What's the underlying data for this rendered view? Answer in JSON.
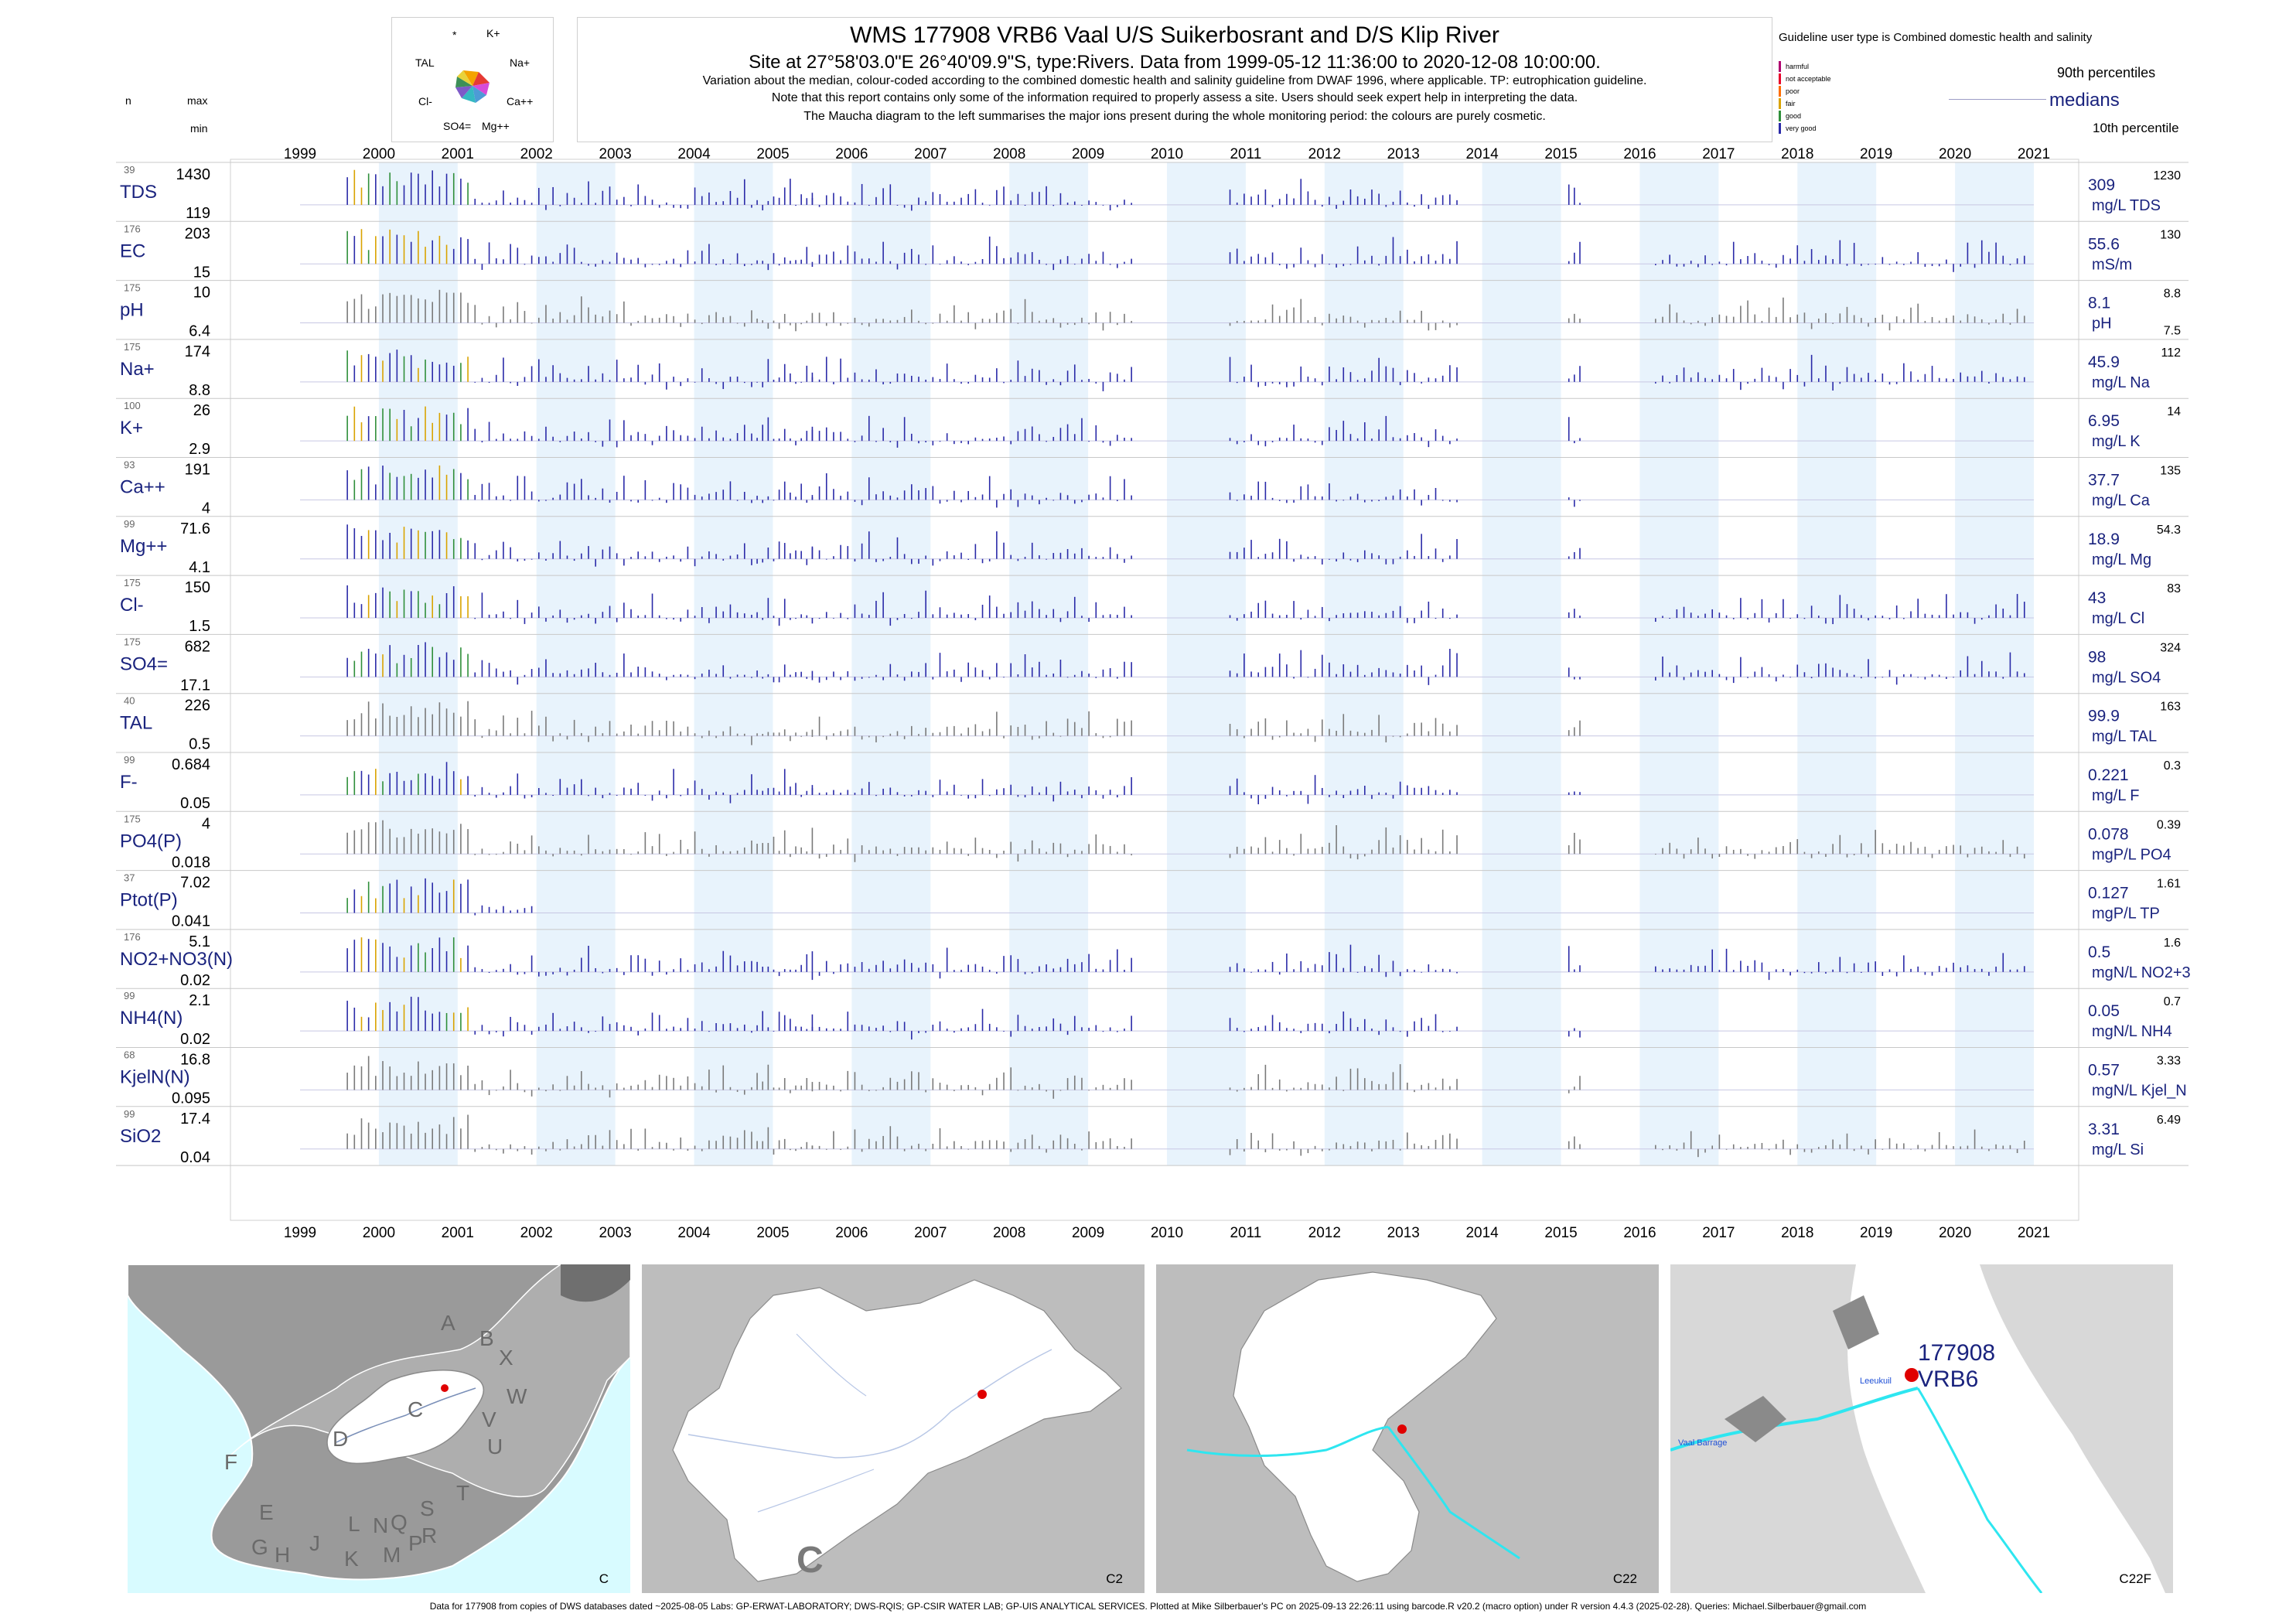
{
  "header": {
    "title": "WMS 177908 VRB6 Vaal U/S Suikerbosrant and D/S Klip River",
    "site_line": "Site at 27°58'03.0\"E 26°40'09.9\"S, type:Rivers.  Data from 1999-05-12 11:36:00 to 2020-12-08 10:00:00.",
    "note_1": "Variation about the median,  colour-coded according to the combined domestic health and salinity guideline from DWAF 1996, where applicable. TP: eutrophication guideline.",
    "note_2": "Note that this report contains only some of the information required to properly assess a site. Users should seek expert help in interpreting the data.",
    "note_3": "The Maucha diagram to the left summarises the major ions present during the whole monitoring period: the colours are purely cosmetic."
  },
  "maucha": {
    "labels": [
      "*",
      "K+",
      "TAL",
      "Na+",
      "Cl-",
      "Ca++",
      "SO4=",
      "Mg++"
    ]
  },
  "guideline": {
    "title": "Guideline user type is Combined domestic health and salinity",
    "categories": [
      {
        "label": "harmful",
        "color": "#b0006f"
      },
      {
        "label": "not acceptable",
        "color": "#e8002a"
      },
      {
        "label": "poor",
        "color": "#ff6d00"
      },
      {
        "label": "fair",
        "color": "#d9a300"
      },
      {
        "label": "good",
        "color": "#2f8f3a"
      },
      {
        "label": "very good",
        "color": "#2a2aa8"
      }
    ],
    "p90_label": "90th percentiles",
    "median_label": "medians",
    "p10_label": "10th percentile"
  },
  "column_heads": {
    "n": "n",
    "max": "max",
    "min": "min"
  },
  "chart_data": {
    "type": "bar",
    "title": "WMS 177908 VRB6 Vaal U/S Suikerbosrant and D/S Klip River",
    "x_range": [
      1999,
      2021
    ],
    "x_ticks": [
      "1999",
      "2000",
      "2001",
      "2002",
      "2003",
      "2004",
      "2005",
      "2006",
      "2007",
      "2008",
      "2009",
      "2010",
      "2011",
      "2012",
      "2013",
      "2014",
      "2015",
      "2016",
      "2017",
      "2018",
      "2019",
      "2020",
      "2021"
    ],
    "sampling": {
      "dense_periods": [
        [
          1999.6,
          2004.8
        ],
        [
          2005.5,
          2009.6
        ],
        [
          2010.8,
          2013.7
        ],
        [
          2016.2,
          2020.95
        ]
      ],
      "sparse_periods": [
        [
          2004.8,
          2005.5
        ],
        [
          2015.1,
          2015.3
        ]
      ]
    },
    "panels": [
      {
        "name": "TDS",
        "n": 39,
        "max": "1430",
        "min": "119",
        "median": "309",
        "unit": "mg/L TDS",
        "p90": "1230",
        "colored": true,
        "end_year": 2015.3
      },
      {
        "name": "EC",
        "n": 176,
        "max": "203",
        "min": "15",
        "median": "55.6",
        "unit": "mS/m",
        "p90": "130",
        "colored": true,
        "end_year": 2020.95
      },
      {
        "name": "pH",
        "n": 175,
        "max": "10",
        "min": "6.4",
        "median": "8.1",
        "unit": "pH",
        "p90": "8.8",
        "p10": "7.5",
        "colored": false,
        "end_year": 2020.95
      },
      {
        "name": "Na+",
        "n": 175,
        "max": "174",
        "min": "8.8",
        "median": "45.9",
        "unit": "mg/L Na",
        "p90": "112",
        "colored": true,
        "end_year": 2020.95
      },
      {
        "name": "K+",
        "n": 100,
        "max": "26",
        "min": "2.9",
        "median": "6.95",
        "unit": "mg/L K",
        "p90": "14",
        "colored": true,
        "end_year": 2015.3
      },
      {
        "name": "Ca++",
        "n": 93,
        "max": "191",
        "min": "4",
        "median": "37.7",
        "unit": "mg/L Ca",
        "p90": "135",
        "colored": true,
        "end_year": 2015.3
      },
      {
        "name": "Mg++",
        "n": 99,
        "max": "71.6",
        "min": "4.1",
        "median": "18.9",
        "unit": "mg/L Mg",
        "p90": "54.3",
        "colored": true,
        "end_year": 2015.3
      },
      {
        "name": "Cl-",
        "n": 175,
        "max": "150",
        "min": "1.5",
        "median": "43",
        "unit": "mg/L Cl",
        "p90": "83",
        "colored": true,
        "end_year": 2020.95
      },
      {
        "name": "SO4=",
        "n": 175,
        "max": "682",
        "min": "17.1",
        "median": "98",
        "unit": "mg/L SO4",
        "p90": "324",
        "colored": true,
        "end_year": 2020.95
      },
      {
        "name": "TAL",
        "n": 40,
        "max": "226",
        "min": "0.5",
        "median": "99.9",
        "unit": "mg/L TAL",
        "p90": "163",
        "colored": false,
        "end_year": 2015.3
      },
      {
        "name": "F-",
        "n": 99,
        "max": "0.684",
        "min": "0.05",
        "median": "0.221",
        "unit": "mg/L F",
        "p90": "0.3",
        "colored": true,
        "end_year": 2015.3
      },
      {
        "name": "PO4(P)",
        "n": 175,
        "max": "4",
        "min": "0.018",
        "median": "0.078",
        "unit": "mgP/L PO4",
        "p90": "0.39",
        "colored": false,
        "end_year": 2020.95
      },
      {
        "name": "Ptot(P)",
        "n": 37,
        "max": "7.02",
        "min": "0.041",
        "median": "0.127",
        "unit": "mgP/L TP",
        "p90": "1.61",
        "colored": true,
        "end_year": 2002
      },
      {
        "name": "NO2+NO3(N)",
        "n": 176,
        "max": "5.1",
        "min": "0.02",
        "median": "0.5",
        "unit": "mgN/L NO2+3",
        "p90": "1.6",
        "colored": true,
        "end_year": 2020.95
      },
      {
        "name": "NH4(N)",
        "n": 99,
        "max": "2.1",
        "min": "0.02",
        "median": "0.05",
        "unit": "mgN/L NH4",
        "p90": "0.7",
        "colored": true,
        "end_year": 2015.3
      },
      {
        "name": "KjelN(N)",
        "n": 68,
        "max": "16.8",
        "min": "0.095",
        "median": "0.57",
        "unit": "mgN/L Kjel_N",
        "p90": "3.33",
        "colored": false,
        "end_year": 2015.3
      },
      {
        "name": "SiO2",
        "n": 99,
        "max": "17.4",
        "min": "0.04",
        "median": "3.31",
        "unit": "mg/L Si",
        "p90": "6.49",
        "colored": false,
        "end_year": 2020.95
      }
    ]
  },
  "maps": [
    {
      "code": "C",
      "letters": [
        "A",
        "B",
        "X",
        "W",
        "V",
        "U",
        "T",
        "C",
        "D",
        "F",
        "E",
        "G",
        "H",
        "J",
        "K",
        "L",
        "M",
        "N",
        "P",
        "Q",
        "R",
        "S"
      ]
    },
    {
      "code": "C2",
      "big_letter": "C"
    },
    {
      "code": "C22"
    },
    {
      "code": "C22F",
      "site_label_1": "177908",
      "site_label_2": "VRB6",
      "place_1": "Vaal Barrage",
      "place_2": "Leeukuil"
    }
  ],
  "footer": "Data for 177908 from copies of DWS databases dated ~2025-08-05 Labs: GP-ERWAT-LABORATORY; DWS-RQIS; GP-CSIR WATER LAB; GP-UIS ANALYTICAL SERVICES. Plotted at Mike Silberbauer's PC on 2025-09-13 22:26:11 using barcode.R v20.2 (macro option) under R version 4.4.3 (2025-02-28). Queries: Michael.Silberbauer@gmail.com"
}
